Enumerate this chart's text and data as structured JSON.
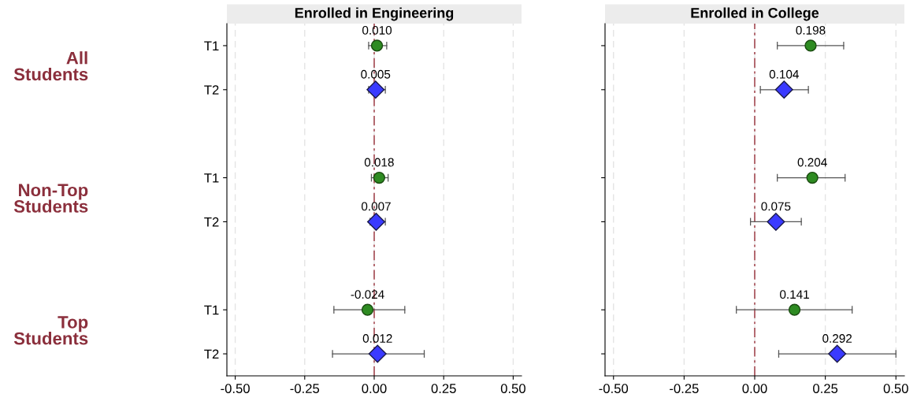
{
  "chart_data": [
    {
      "type": "scatter",
      "orientation": "horizontal",
      "title": "Enrolled in Engineering",
      "categories": [
        "T1",
        "T2",
        null,
        "T1",
        "T2",
        null,
        "T1",
        "T2"
      ],
      "series": [
        {
          "color": "#2e8b22",
          "marker": "circle",
          "values": [
            0.01,
            null,
            null,
            0.018,
            null,
            null,
            -0.024,
            null
          ],
          "errors": [
            [
              -0.02,
              0.045
            ],
            null,
            null,
            [
              -0.01,
              0.05
            ],
            null,
            null,
            [
              -0.145,
              0.11
            ],
            null
          ],
          "value_labels": [
            "0.010",
            null,
            null,
            "0.018",
            null,
            null,
            "-0.024",
            null
          ]
        },
        {
          "color": "#3a3aff",
          "marker": "diamond",
          "values": [
            null,
            0.005,
            null,
            null,
            0.007,
            null,
            null,
            0.012
          ],
          "errors": [
            null,
            [
              -0.02,
              0.04
            ],
            null,
            null,
            [
              -0.015,
              0.04
            ],
            null,
            null,
            [
              -0.15,
              0.18
            ]
          ],
          "value_labels": [
            null,
            "0.005",
            null,
            null,
            "0.007",
            null,
            null,
            "0.012"
          ]
        }
      ],
      "xlim": [
        -0.53,
        0.53
      ],
      "xticks": [
        {
          "value": -0.5,
          "label": "-0.50"
        },
        {
          "value": -0.25,
          "label": "-0.25"
        },
        {
          "value": 0,
          "label": "0.00"
        },
        {
          "value": 0.25,
          "label": "0.25"
        },
        {
          "value": 0.5,
          "label": "0.50"
        }
      ],
      "ref_lines": [
        {
          "axis": "x",
          "value": 0,
          "color": "#a0404a",
          "line_style": "dashed"
        }
      ],
      "grid": "x",
      "annotations": [
        "All\nStudents",
        "Non-Top\nStudents",
        "Top\nStudents"
      ]
    },
    {
      "type": "scatter",
      "orientation": "horizontal",
      "title": "Enrolled in College",
      "categories": [
        null,
        null,
        null,
        null,
        null,
        null,
        null,
        null
      ],
      "series": [
        {
          "color": "#2e8b22",
          "marker": "circle",
          "values": [
            0.198,
            null,
            null,
            0.204,
            null,
            null,
            0.141,
            null
          ],
          "errors": [
            [
              0.08,
              0.315
            ],
            null,
            null,
            [
              0.08,
              0.32
            ],
            null,
            null,
            [
              -0.065,
              0.345
            ],
            null
          ],
          "value_labels": [
            "0.198",
            null,
            null,
            "0.204",
            null,
            null,
            "0.141",
            null
          ]
        },
        {
          "color": "#3a3aff",
          "marker": "diamond",
          "values": [
            null,
            0.104,
            null,
            null,
            0.075,
            null,
            null,
            0.292
          ],
          "errors": [
            null,
            [
              0.02,
              0.19
            ],
            null,
            null,
            [
              -0.015,
              0.165
            ],
            null,
            null,
            [
              0.085,
              0.5
            ]
          ],
          "value_labels": [
            null,
            "0.104",
            null,
            null,
            "0.075",
            null,
            null,
            "0.292"
          ]
        }
      ],
      "xlim": [
        -0.53,
        0.53
      ],
      "xticks": [
        {
          "value": -0.5,
          "label": "-0.50"
        },
        {
          "value": -0.25,
          "label": "-0.25"
        },
        {
          "value": 0,
          "label": "0.00"
        },
        {
          "value": 0.25,
          "label": "0.25"
        },
        {
          "value": 0.5,
          "label": "0.50"
        }
      ],
      "ref_lines": [
        {
          "axis": "x",
          "value": 0,
          "color": "#a0404a",
          "line_style": "dashed"
        }
      ],
      "grid": "x",
      "tick_labels": "x"
    }
  ]
}
